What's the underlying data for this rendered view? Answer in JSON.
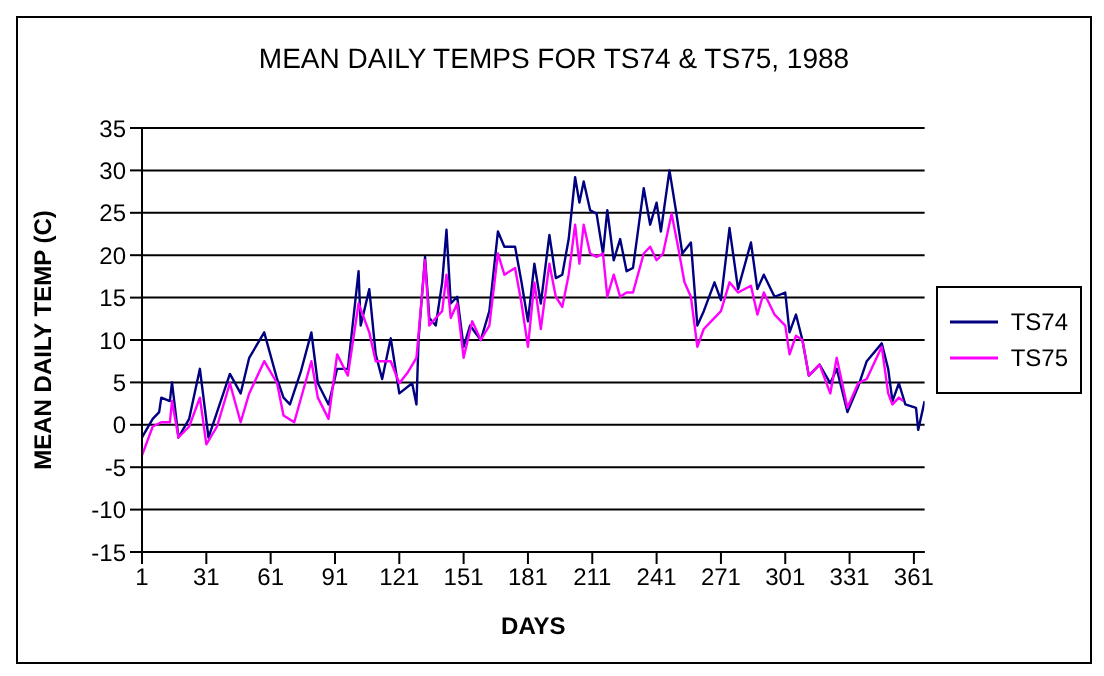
{
  "chart_data": {
    "type": "line",
    "title": "MEAN DAILY TEMPS FOR TS74 & TS75, 1988",
    "xlabel": "DAYS",
    "ylabel": "MEAN DAILY TEMP (C)",
    "xlim": [
      1,
      366
    ],
    "xticks": [
      1,
      31,
      61,
      91,
      121,
      151,
      181,
      211,
      241,
      271,
      301,
      331,
      361
    ],
    "ylim": [
      -15,
      35
    ],
    "yticks": [
      -15,
      -10,
      -5,
      0,
      5,
      10,
      15,
      20,
      25,
      30,
      35
    ],
    "grid": "y",
    "legend": "right",
    "marker": "none",
    "line_style": "solid",
    "series": [
      {
        "name": "TS74",
        "color": "#000080",
        "x": [
          1,
          6,
          9,
          10,
          14,
          15,
          17,
          18,
          23,
          28,
          32,
          36,
          42,
          47,
          51,
          58,
          64,
          67,
          70,
          75,
          80,
          83,
          88,
          92,
          97,
          102,
          103,
          107,
          110,
          113,
          117,
          121,
          127,
          129,
          130,
          133,
          135,
          138,
          141,
          143,
          145,
          148,
          151,
          154,
          159,
          163,
          167,
          170,
          175,
          178,
          181,
          184,
          187,
          191,
          194,
          197,
          200,
          203,
          205,
          207,
          210,
          213,
          216,
          218,
          221,
          224,
          227,
          230,
          235,
          238,
          241,
          243,
          247,
          250,
          253,
          257,
          260,
          263,
          268,
          271,
          275,
          279,
          285,
          288,
          291,
          296,
          301,
          303,
          306,
          309,
          312,
          317,
          322,
          325,
          330,
          335,
          339,
          346,
          349,
          351,
          354,
          357,
          362,
          363,
          366
        ],
        "values": [
          -1.5,
          0.7,
          1.5,
          3.2,
          2.8,
          5,
          0.7,
          -1.5,
          0.7,
          6.6,
          -1.5,
          1.5,
          6,
          3.7,
          7.9,
          10.9,
          5.4,
          3.2,
          2.4,
          6.2,
          10.9,
          4.9,
          2.4,
          6.6,
          6.6,
          18.1,
          11.7,
          16,
          8.3,
          5.4,
          10.2,
          3.7,
          4.9,
          2.4,
          10.2,
          19.8,
          12.6,
          11.7,
          16.8,
          23,
          14.3,
          15.1,
          9.2,
          11.7,
          10,
          13.4,
          22.8,
          21,
          21,
          16.8,
          12.2,
          19,
          14.3,
          22.4,
          17.3,
          17.7,
          21.9,
          29.2,
          26.2,
          28.7,
          25.3,
          24.9,
          20.2,
          25.3,
          19.4,
          21.9,
          18.1,
          18.5,
          27.9,
          23.6,
          26.2,
          22.8,
          30,
          25.3,
          20.2,
          21.5,
          11.7,
          13.4,
          16.8,
          14.7,
          23.2,
          16,
          21.5,
          16,
          17.7,
          15.1,
          15.6,
          10.9,
          13,
          10,
          5.8,
          7.1,
          4.9,
          6.6,
          1.5,
          4.5,
          7.5,
          9.6,
          6.6,
          2.8,
          4.9,
          2.4,
          2,
          -0.6,
          2.8
        ]
      },
      {
        "name": "TS75",
        "color": "#ff00ff",
        "x": [
          1,
          6,
          10,
          14,
          15,
          18,
          23,
          28,
          31,
          36,
          42,
          47,
          51,
          58,
          64,
          67,
          72,
          80,
          83,
          88,
          92,
          97,
          102,
          107,
          110,
          117,
          121,
          125,
          129,
          133,
          135,
          138,
          141,
          143,
          145,
          148,
          151,
          155,
          159,
          163,
          167,
          170,
          175,
          178,
          181,
          184,
          187,
          191,
          194,
          197,
          200,
          203,
          205,
          207,
          210,
          213,
          216,
          218,
          221,
          224,
          227,
          230,
          235,
          238,
          241,
          244,
          248,
          251,
          254,
          257,
          260,
          263,
          268,
          271,
          275,
          279,
          285,
          288,
          291,
          296,
          301,
          303,
          306,
          309,
          312,
          317,
          322,
          325,
          330,
          335,
          339,
          346,
          349,
          351,
          354,
          356
        ],
        "values": [
          -3.6,
          -0.2,
          0.3,
          0.3,
          2.8,
          -1.5,
          -0.2,
          3.2,
          -2.3,
          -0.2,
          4.9,
          0.3,
          3.7,
          7.5,
          4.9,
          1.1,
          0.3,
          7.5,
          3.2,
          0.7,
          8.3,
          5.8,
          14.3,
          10.9,
          7.5,
          7.5,
          4.9,
          6.2,
          7.9,
          19.4,
          11.7,
          12.6,
          13.4,
          17.7,
          12.6,
          14.3,
          7.9,
          12.2,
          10,
          11.7,
          20.2,
          17.7,
          18.5,
          14.3,
          9.2,
          16.8,
          11.3,
          19,
          15.1,
          13.9,
          17.7,
          23.6,
          19,
          23.6,
          20.2,
          19.8,
          20.2,
          15.1,
          17.7,
          15.1,
          15.6,
          15.6,
          20.2,
          21,
          19.4,
          20.2,
          24.9,
          21,
          16.8,
          15.1,
          9.2,
          11.3,
          12.6,
          13.4,
          16.8,
          15.6,
          16.4,
          13,
          15.6,
          13,
          11.7,
          8.3,
          10.5,
          10,
          5.8,
          7.1,
          3.7,
          7.9,
          2,
          4.9,
          5.4,
          9.2,
          3.7,
          2.4,
          3.2,
          2.8
        ]
      }
    ]
  }
}
